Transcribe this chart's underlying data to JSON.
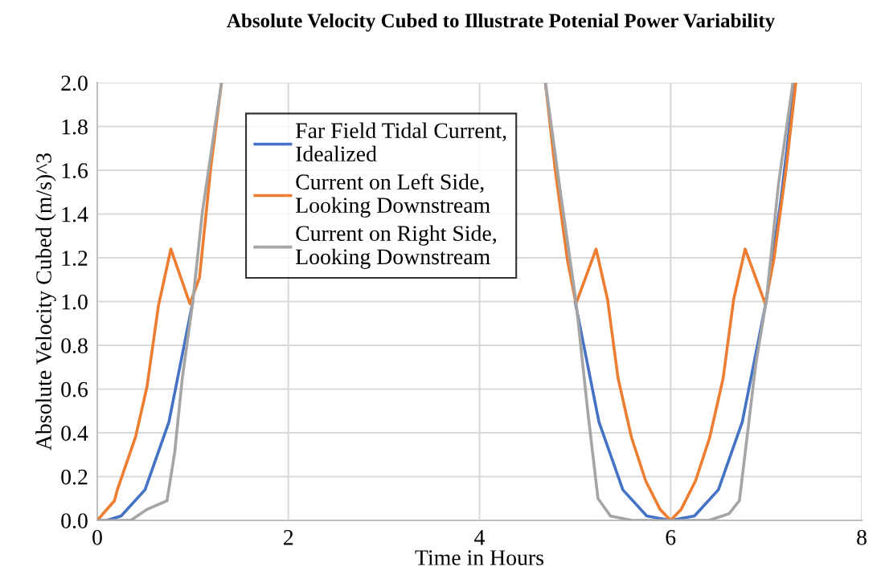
{
  "chart_data": {
    "type": "line",
    "title": "Absolute Velocity Cubed to Illustrate Potenial Power Variability",
    "xlabel": "Time in Hours",
    "ylabel": "Absolute Velocity Cubed (m/s)^3",
    "xlim": [
      0,
      8
    ],
    "xticks": [
      0,
      2,
      4,
      6,
      8
    ],
    "ylim": [
      0,
      2.0
    ],
    "yticks": [
      {
        "value": 0,
        "label": "0.0"
      },
      {
        "value": 0.2,
        "label": "0.2"
      },
      {
        "value": 0.4,
        "label": "0.4"
      },
      {
        "value": 0.6,
        "label": "0.6"
      },
      {
        "value": 0.8,
        "label": "0.8"
      },
      {
        "value": 1.0,
        "label": "1.0"
      },
      {
        "value": 1.2,
        "label": "1.2"
      },
      {
        "value": 1.4,
        "label": "1.4"
      },
      {
        "value": 1.6,
        "label": "1.6"
      },
      {
        "value": 1.8,
        "label": "1.8"
      },
      {
        "value": 2.0,
        "label": "2.0"
      }
    ],
    "grid": true,
    "legend": "top",
    "marker": "none",
    "line_style": "solid",
    "series": [
      {
        "name": "Far Field Tidal Current,\nIdealized",
        "color": "#4472c4",
        "x": [
          0,
          0.1,
          0.25,
          0.5,
          0.75,
          1,
          1.15,
          1.3,
          3,
          4.7,
          4.85,
          5,
          5.25,
          5.5,
          5.75,
          6,
          6.25,
          6.5,
          6.75,
          7,
          7.15,
          7.3
        ],
        "values": [
          0,
          0,
          0.02,
          0.14,
          0.45,
          1.0,
          null,
          null,
          null,
          null,
          null,
          1.0,
          0.45,
          0.14,
          0.02,
          0,
          0.02,
          0.14,
          0.45,
          1.0,
          1.45,
          2.0
        ]
      },
      {
        "name": "Current on Left Side,\nLooking Downstream",
        "color": "#ed7d31",
        "x": [
          0,
          0.18,
          0.21,
          0.4,
          0.52,
          0.64,
          0.77,
          0.97,
          1.07,
          1.19,
          1.3,
          3,
          4.69,
          4.79,
          4.92,
          5.01,
          5.22,
          5.34,
          5.45,
          5.59,
          5.74,
          5.89,
          6,
          6.11,
          6.26,
          6.41,
          6.55,
          6.66,
          6.78,
          6.99,
          7.08,
          7.21,
          7.31
        ],
        "values": [
          0,
          0.09,
          0.14,
          0.38,
          0.61,
          0.98,
          1.24,
          0.99,
          1.11,
          1.62,
          2.0,
          null,
          2.0,
          1.61,
          1.19,
          0.99,
          1.24,
          1.01,
          0.65,
          0.38,
          0.18,
          0.05,
          0,
          0.05,
          0.18,
          0.38,
          0.65,
          1.01,
          1.24,
          0.99,
          1.19,
          1.61,
          2.0
        ]
      },
      {
        "name": "Current on Right Side,\nLooking Downstream",
        "color": "#a5a5a5",
        "x": [
          0,
          0.35,
          0.52,
          0.73,
          0.81,
          0.89,
          1.0,
          1.1,
          1.3,
          3,
          4.69,
          4.85,
          5.01,
          5.13,
          5.24,
          5.37,
          5.6,
          6,
          6.4,
          6.61,
          6.72,
          6.8,
          6.89,
          7.0,
          7.13,
          7.28
        ],
        "values": [
          0,
          0,
          0.05,
          0.09,
          0.31,
          0.65,
          1.0,
          1.41,
          2.0,
          null,
          2.0,
          1.49,
          1.0,
          0.51,
          0.1,
          0.02,
          0,
          0,
          0,
          0.03,
          0.09,
          0.38,
          0.71,
          1.0,
          1.54,
          2.0
        ]
      }
    ]
  }
}
